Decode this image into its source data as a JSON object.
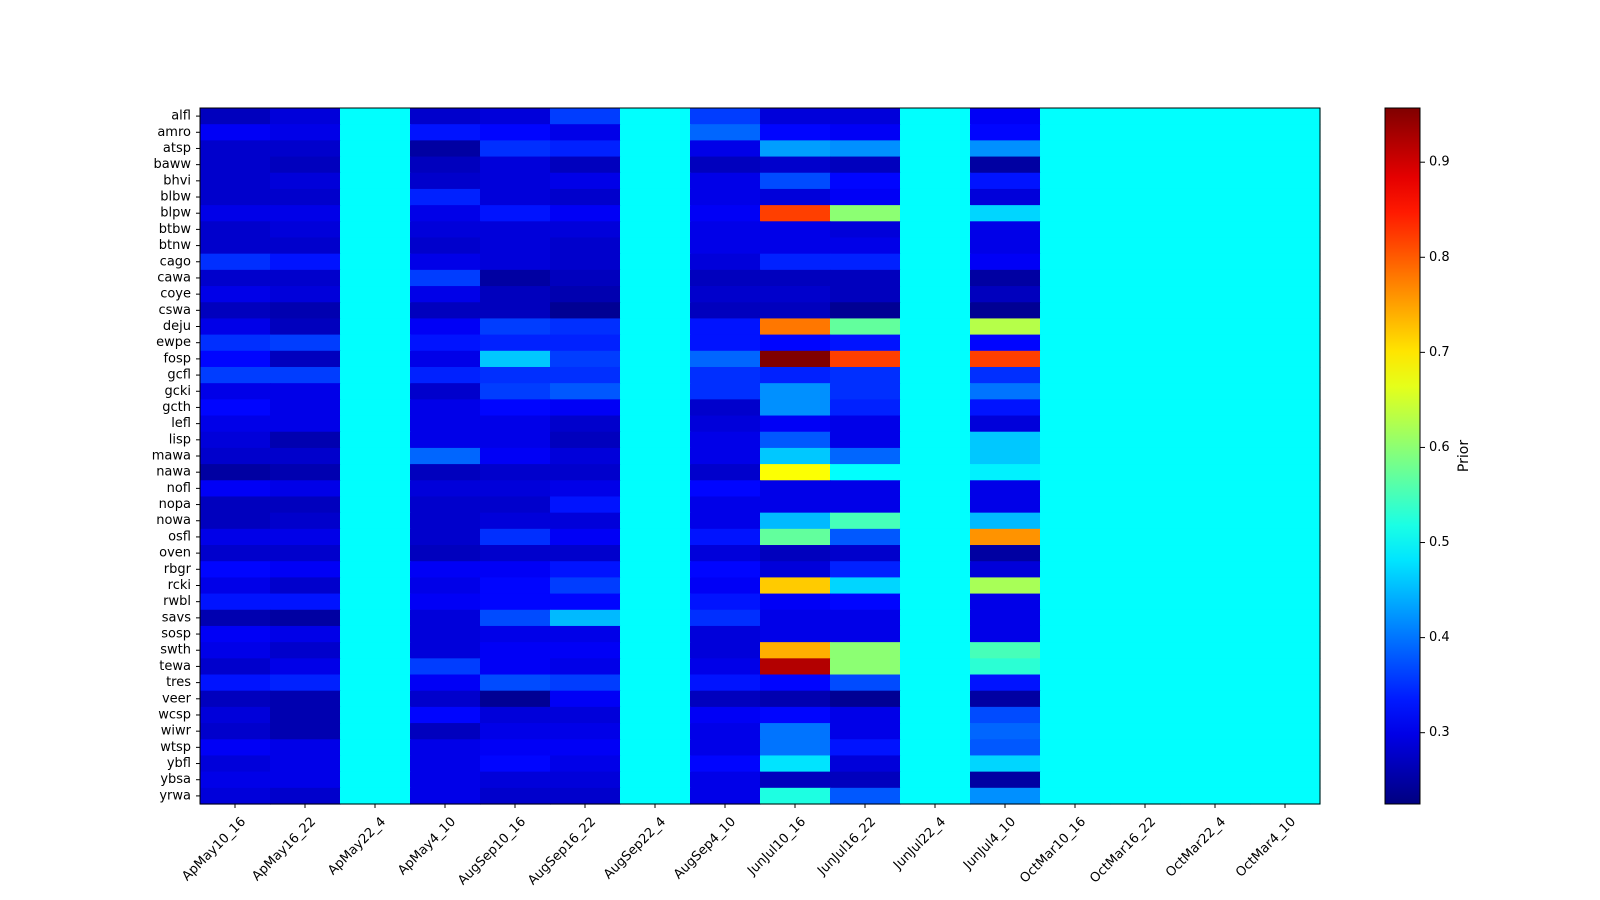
{
  "chart_data": {
    "type": "heatmap",
    "colormap": "jet",
    "colorbar": {
      "label": "Prior",
      "vmin": 0.225,
      "vmax": 0.957,
      "ticks": [
        0.3,
        0.4,
        0.5,
        0.6,
        0.7,
        0.8,
        0.9
      ],
      "tick_labels": [
        "0.3",
        "0.4",
        "0.5",
        "0.6",
        "0.7",
        "0.8",
        "0.9"
      ]
    },
    "x_categories": [
      "ApMay10_16",
      "ApMay16_22",
      "ApMay22_4",
      "ApMay4_10",
      "AugSep10_16",
      "AugSep16_22",
      "AugSep22_4",
      "AugSep4_10",
      "JunJul10_16",
      "JunJul16_22",
      "JunJul22_4",
      "JunJul4_10",
      "OctMar10_16",
      "OctMar16_22",
      "OctMar22_4",
      "OctMar4_10"
    ],
    "y_categories": [
      "alfl",
      "amro",
      "atsp",
      "baww",
      "bhvi",
      "blbw",
      "blpw",
      "btbw",
      "btnw",
      "cago",
      "cawa",
      "coye",
      "cswa",
      "deju",
      "ewpe",
      "fosp",
      "gcfl",
      "gcki",
      "gcth",
      "lefl",
      "lisp",
      "mawa",
      "nawa",
      "nofl",
      "nopa",
      "nowa",
      "osfl",
      "oven",
      "rbgr",
      "rcki",
      "rwbl",
      "savs",
      "sosp",
      "swth",
      "tewa",
      "tres",
      "veer",
      "wcsp",
      "wiwr",
      "wtsp",
      "ybfl",
      "ybsa",
      "yrwa"
    ],
    "values": [
      [
        0.27,
        0.29,
        0.5,
        0.28,
        0.29,
        0.36,
        0.5,
        0.36,
        0.29,
        0.29,
        0.5,
        0.31,
        0.5,
        0.5,
        0.5,
        0.5
      ],
      [
        0.31,
        0.3,
        0.5,
        0.33,
        0.32,
        0.3,
        0.5,
        0.39,
        0.32,
        0.31,
        0.5,
        0.32,
        0.5,
        0.5,
        0.5,
        0.5
      ],
      [
        0.28,
        0.28,
        0.5,
        0.25,
        0.35,
        0.34,
        0.5,
        0.3,
        0.43,
        0.42,
        0.5,
        0.42,
        0.5,
        0.5,
        0.5,
        0.5
      ],
      [
        0.28,
        0.27,
        0.5,
        0.27,
        0.29,
        0.27,
        0.5,
        0.27,
        0.28,
        0.27,
        0.5,
        0.25,
        0.5,
        0.5,
        0.5,
        0.5
      ],
      [
        0.28,
        0.29,
        0.5,
        0.28,
        0.29,
        0.3,
        0.5,
        0.3,
        0.37,
        0.32,
        0.5,
        0.33,
        0.5,
        0.5,
        0.5,
        0.5
      ],
      [
        0.28,
        0.28,
        0.5,
        0.34,
        0.29,
        0.28,
        0.5,
        0.3,
        0.29,
        0.31,
        0.5,
        0.29,
        0.5,
        0.5,
        0.5,
        0.5
      ],
      [
        0.3,
        0.3,
        0.5,
        0.3,
        0.33,
        0.31,
        0.5,
        0.31,
        0.82,
        0.6,
        0.5,
        0.47,
        0.5,
        0.5,
        0.5,
        0.5
      ],
      [
        0.28,
        0.29,
        0.5,
        0.29,
        0.29,
        0.29,
        0.5,
        0.3,
        0.3,
        0.29,
        0.5,
        0.3,
        0.5,
        0.5,
        0.5,
        0.5
      ],
      [
        0.28,
        0.28,
        0.5,
        0.28,
        0.29,
        0.28,
        0.5,
        0.3,
        0.3,
        0.3,
        0.5,
        0.3,
        0.5,
        0.5,
        0.5,
        0.5
      ],
      [
        0.35,
        0.33,
        0.5,
        0.3,
        0.29,
        0.28,
        0.5,
        0.29,
        0.34,
        0.34,
        0.5,
        0.31,
        0.5,
        0.5,
        0.5,
        0.5
      ],
      [
        0.28,
        0.28,
        0.5,
        0.36,
        0.25,
        0.27,
        0.5,
        0.27,
        0.27,
        0.27,
        0.5,
        0.25,
        0.5,
        0.5,
        0.5,
        0.5
      ],
      [
        0.3,
        0.29,
        0.5,
        0.3,
        0.27,
        0.26,
        0.5,
        0.28,
        0.28,
        0.27,
        0.5,
        0.27,
        0.5,
        0.5,
        0.5,
        0.5
      ],
      [
        0.27,
        0.26,
        0.5,
        0.27,
        0.27,
        0.24,
        0.5,
        0.27,
        0.27,
        0.24,
        0.5,
        0.24,
        0.5,
        0.5,
        0.5,
        0.5
      ],
      [
        0.3,
        0.27,
        0.5,
        0.31,
        0.36,
        0.35,
        0.5,
        0.33,
        0.78,
        0.57,
        0.5,
        0.63,
        0.5,
        0.5,
        0.5,
        0.5
      ],
      [
        0.35,
        0.36,
        0.5,
        0.33,
        0.34,
        0.34,
        0.5,
        0.33,
        0.32,
        0.33,
        0.5,
        0.32,
        0.5,
        0.5,
        0.5,
        0.5
      ],
      [
        0.32,
        0.27,
        0.5,
        0.3,
        0.46,
        0.36,
        0.5,
        0.39,
        0.96,
        0.82,
        0.5,
        0.82,
        0.5,
        0.5,
        0.5,
        0.5
      ],
      [
        0.36,
        0.36,
        0.5,
        0.34,
        0.35,
        0.35,
        0.5,
        0.35,
        0.34,
        0.35,
        0.5,
        0.35,
        0.5,
        0.5,
        0.5,
        0.5
      ],
      [
        0.3,
        0.3,
        0.5,
        0.28,
        0.36,
        0.38,
        0.5,
        0.35,
        0.42,
        0.35,
        0.5,
        0.4,
        0.5,
        0.5,
        0.5,
        0.5
      ],
      [
        0.32,
        0.3,
        0.5,
        0.3,
        0.32,
        0.31,
        0.5,
        0.28,
        0.42,
        0.34,
        0.5,
        0.33,
        0.5,
        0.5,
        0.5,
        0.5
      ],
      [
        0.3,
        0.3,
        0.5,
        0.3,
        0.3,
        0.28,
        0.5,
        0.29,
        0.31,
        0.3,
        0.5,
        0.29,
        0.5,
        0.5,
        0.5,
        0.5
      ],
      [
        0.29,
        0.26,
        0.5,
        0.3,
        0.3,
        0.27,
        0.5,
        0.3,
        0.38,
        0.3,
        0.5,
        0.46,
        0.5,
        0.5,
        0.5,
        0.5
      ],
      [
        0.28,
        0.28,
        0.5,
        0.39,
        0.31,
        0.29,
        0.5,
        0.3,
        0.46,
        0.39,
        0.5,
        0.46,
        0.5,
        0.5,
        0.5,
        0.5
      ],
      [
        0.25,
        0.26,
        0.5,
        0.27,
        0.28,
        0.28,
        0.5,
        0.28,
        0.68,
        0.5,
        0.5,
        0.49,
        0.5,
        0.5,
        0.5,
        0.5
      ],
      [
        0.31,
        0.3,
        0.5,
        0.29,
        0.29,
        0.3,
        0.5,
        0.32,
        0.3,
        0.3,
        0.5,
        0.3,
        0.5,
        0.5,
        0.5,
        0.5
      ],
      [
        0.27,
        0.27,
        0.5,
        0.28,
        0.28,
        0.33,
        0.5,
        0.3,
        0.3,
        0.3,
        0.5,
        0.3,
        0.5,
        0.5,
        0.5,
        0.5
      ],
      [
        0.27,
        0.28,
        0.5,
        0.28,
        0.29,
        0.29,
        0.5,
        0.3,
        0.45,
        0.55,
        0.5,
        0.45,
        0.5,
        0.5,
        0.5,
        0.5
      ],
      [
        0.3,
        0.3,
        0.5,
        0.28,
        0.35,
        0.31,
        0.5,
        0.33,
        0.57,
        0.38,
        0.5,
        0.76,
        0.5,
        0.5,
        0.5,
        0.5
      ],
      [
        0.28,
        0.28,
        0.5,
        0.27,
        0.28,
        0.28,
        0.5,
        0.29,
        0.27,
        0.28,
        0.5,
        0.25,
        0.5,
        0.5,
        0.5,
        0.5
      ],
      [
        0.32,
        0.31,
        0.5,
        0.31,
        0.31,
        0.33,
        0.5,
        0.32,
        0.29,
        0.34,
        0.5,
        0.29,
        0.5,
        0.5,
        0.5,
        0.5
      ],
      [
        0.3,
        0.28,
        0.5,
        0.3,
        0.32,
        0.36,
        0.5,
        0.31,
        0.72,
        0.47,
        0.5,
        0.62,
        0.5,
        0.5,
        0.5,
        0.5
      ],
      [
        0.33,
        0.33,
        0.5,
        0.31,
        0.32,
        0.32,
        0.5,
        0.33,
        0.31,
        0.32,
        0.5,
        0.3,
        0.5,
        0.5,
        0.5,
        0.5
      ],
      [
        0.26,
        0.25,
        0.5,
        0.29,
        0.37,
        0.45,
        0.5,
        0.35,
        0.3,
        0.3,
        0.5,
        0.3,
        0.5,
        0.5,
        0.5,
        0.5
      ],
      [
        0.31,
        0.3,
        0.5,
        0.29,
        0.3,
        0.3,
        0.5,
        0.29,
        0.3,
        0.3,
        0.5,
        0.3,
        0.5,
        0.5,
        0.5,
        0.5
      ],
      [
        0.3,
        0.28,
        0.5,
        0.29,
        0.31,
        0.31,
        0.5,
        0.29,
        0.74,
        0.6,
        0.5,
        0.55,
        0.5,
        0.5,
        0.5,
        0.5
      ],
      [
        0.28,
        0.3,
        0.5,
        0.36,
        0.31,
        0.3,
        0.5,
        0.3,
        0.92,
        0.6,
        0.5,
        0.53,
        0.5,
        0.5,
        0.5,
        0.5
      ],
      [
        0.33,
        0.34,
        0.5,
        0.31,
        0.37,
        0.36,
        0.5,
        0.33,
        0.32,
        0.37,
        0.5,
        0.33,
        0.5,
        0.5,
        0.5,
        0.5
      ],
      [
        0.27,
        0.26,
        0.5,
        0.28,
        0.24,
        0.31,
        0.5,
        0.27,
        0.26,
        0.24,
        0.5,
        0.25,
        0.5,
        0.5,
        0.5,
        0.5
      ],
      [
        0.29,
        0.26,
        0.5,
        0.32,
        0.29,
        0.29,
        0.5,
        0.31,
        0.32,
        0.3,
        0.5,
        0.37,
        0.5,
        0.5,
        0.5,
        0.5
      ],
      [
        0.28,
        0.26,
        0.5,
        0.27,
        0.3,
        0.3,
        0.5,
        0.3,
        0.4,
        0.3,
        0.5,
        0.39,
        0.5,
        0.5,
        0.5,
        0.5
      ],
      [
        0.31,
        0.3,
        0.5,
        0.3,
        0.31,
        0.31,
        0.5,
        0.3,
        0.4,
        0.33,
        0.5,
        0.38,
        0.5,
        0.5,
        0.5,
        0.5
      ],
      [
        0.29,
        0.3,
        0.5,
        0.3,
        0.32,
        0.3,
        0.5,
        0.32,
        0.48,
        0.29,
        0.5,
        0.47,
        0.5,
        0.5,
        0.5,
        0.5
      ],
      [
        0.3,
        0.3,
        0.5,
        0.3,
        0.29,
        0.29,
        0.5,
        0.3,
        0.27,
        0.27,
        0.5,
        0.25,
        0.5,
        0.5,
        0.5,
        0.5
      ],
      [
        0.29,
        0.28,
        0.5,
        0.3,
        0.28,
        0.28,
        0.5,
        0.3,
        0.52,
        0.38,
        0.5,
        0.42,
        0.5,
        0.5,
        0.5,
        0.5
      ]
    ],
    "title": "",
    "xlabel": "",
    "ylabel": ""
  }
}
